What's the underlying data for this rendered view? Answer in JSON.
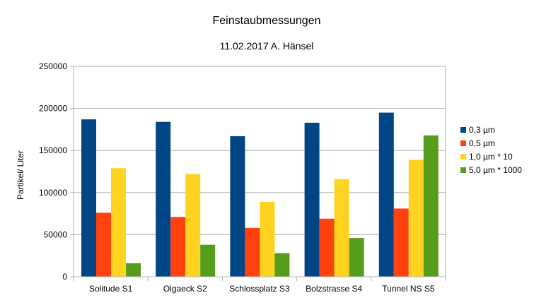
{
  "chart_data": {
    "type": "bar",
    "title": "Feinstaubmessungen",
    "subtitle": "11.02.2017 A. Hänsel",
    "xlabel": "",
    "ylabel": "Partikel/ Liter",
    "ylim": [
      0,
      250000
    ],
    "yticks": [
      "0",
      "50000",
      "100000",
      "150000",
      "200000",
      "250000"
    ],
    "grid": true,
    "legend_position": "right",
    "categories": [
      "Solitude S1",
      "Olgaeck S2",
      "Schlossplatz S3",
      "Bolzstrasse S4",
      "Tunnel NS S5"
    ],
    "series": [
      {
        "name": "0,3 µm",
        "color": "#004586",
        "values": [
          187000,
          184000,
          167000,
          183000,
          195000
        ]
      },
      {
        "name": "0,5 µm",
        "color": "#ff420e",
        "values": [
          76000,
          71000,
          58000,
          69000,
          81000
        ]
      },
      {
        "name": "1,0 µm * 10",
        "color": "#ffd320",
        "values": [
          129000,
          122000,
          89000,
          116000,
          139000
        ]
      },
      {
        "name": "5,0 µm * 1000",
        "color": "#579d1c",
        "values": [
          16000,
          38000,
          28000,
          46000,
          168000
        ]
      }
    ]
  }
}
